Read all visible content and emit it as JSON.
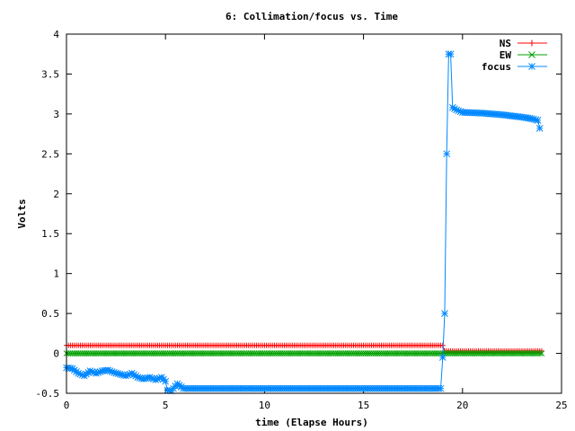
{
  "chart_data": {
    "type": "line",
    "title": "6: Collimation/focus vs. Time",
    "xlabel": "time (Elapse Hours)",
    "ylabel": "Volts",
    "xlim": [
      0,
      25
    ],
    "ylim": [
      -0.5,
      4
    ],
    "x_ticks": [
      "0",
      "5",
      "10",
      "15",
      "20",
      "25"
    ],
    "y_ticks": [
      "-0.5",
      "0",
      "0.5",
      "1",
      "1.5",
      "2",
      "2.5",
      "3",
      "3.5",
      "4"
    ],
    "grid": false,
    "legend_position": "top-right",
    "series": [
      {
        "name": "NS",
        "color": "#ff0000",
        "marker": "plus",
        "points": [
          [
            0,
            0.1
          ],
          [
            19.0,
            0.1
          ],
          [
            19.1,
            0.03
          ],
          [
            24.0,
            0.03
          ]
        ]
      },
      {
        "name": "EW",
        "color": "#00a000",
        "marker": "x",
        "points": [
          [
            0,
            0.0
          ],
          [
            24.0,
            0.0
          ]
        ]
      },
      {
        "name": "focus",
        "color": "#0088ff",
        "marker": "star",
        "points": [
          [
            0.0,
            -0.18
          ],
          [
            0.3,
            -0.19
          ],
          [
            0.6,
            -0.25
          ],
          [
            0.9,
            -0.28
          ],
          [
            1.2,
            -0.22
          ],
          [
            1.5,
            -0.25
          ],
          [
            1.8,
            -0.22
          ],
          [
            2.1,
            -0.21
          ],
          [
            2.4,
            -0.24
          ],
          [
            2.7,
            -0.26
          ],
          [
            3.0,
            -0.28
          ],
          [
            3.3,
            -0.25
          ],
          [
            3.6,
            -0.3
          ],
          [
            3.9,
            -0.32
          ],
          [
            4.2,
            -0.3
          ],
          [
            4.5,
            -0.33
          ],
          [
            4.8,
            -0.3
          ],
          [
            5.0,
            -0.35
          ],
          [
            5.1,
            -0.46
          ],
          [
            5.3,
            -0.47
          ],
          [
            5.6,
            -0.38
          ],
          [
            5.9,
            -0.44
          ],
          [
            7.0,
            -0.44
          ],
          [
            10.0,
            -0.44
          ],
          [
            13.0,
            -0.44
          ],
          [
            16.0,
            -0.44
          ],
          [
            18.9,
            -0.44
          ],
          [
            19.0,
            -0.05
          ],
          [
            19.1,
            0.5
          ],
          [
            19.2,
            2.5
          ],
          [
            19.3,
            3.75
          ],
          [
            19.4,
            3.75
          ],
          [
            19.5,
            3.08
          ],
          [
            19.7,
            3.05
          ],
          [
            20.0,
            3.02
          ],
          [
            21.0,
            3.01
          ],
          [
            22.0,
            2.99
          ],
          [
            23.0,
            2.96
          ],
          [
            23.5,
            2.94
          ],
          [
            23.8,
            2.92
          ],
          [
            23.9,
            2.82
          ]
        ]
      }
    ]
  }
}
